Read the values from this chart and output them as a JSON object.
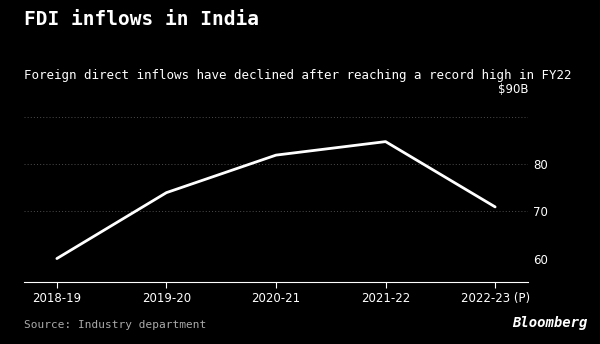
{
  "title": "FDI inflows in India",
  "subtitle": "Foreign direct inflows have declined after reaching a record high in FY22",
  "source": "Source: Industry department",
  "bloomberg": "Bloomberg",
  "x_labels": [
    "2018-19",
    "2019-20",
    "2020-21",
    "2021-22",
    "2022-23 (P)"
  ],
  "y_values": [
    60.0,
    74.0,
    81.97,
    84.84,
    70.97
  ],
  "y_label_top": "$90B",
  "y_lim": [
    55,
    93
  ],
  "line_color": "#ffffff",
  "background_color": "#000000",
  "text_color": "#ffffff",
  "grid_color": "#666666",
  "title_fontsize": 14,
  "subtitle_fontsize": 9,
  "tick_fontsize": 8.5,
  "source_fontsize": 8,
  "bloomberg_fontsize": 10
}
